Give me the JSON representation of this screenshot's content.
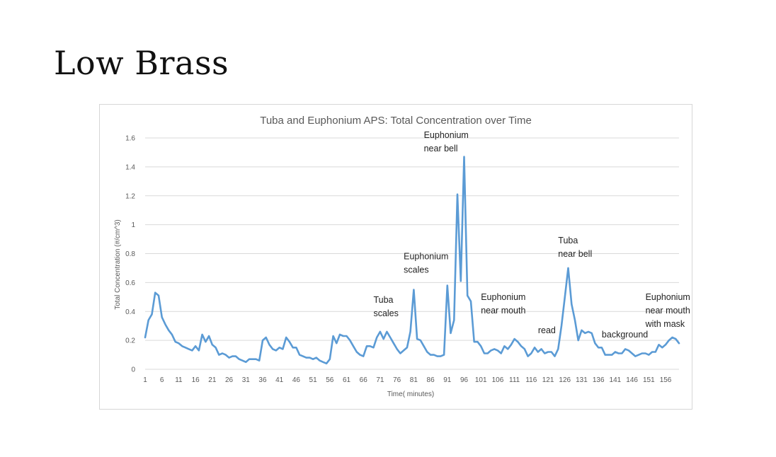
{
  "slide": {
    "title": "Low Brass"
  },
  "chart_data": {
    "type": "line",
    "title": "Tuba and Euphonium APS: Total Concentration over Time",
    "xlabel": "Time( minutes)",
    "ylabel": "Total Concentration (#/cm^3)",
    "ylim": [
      0,
      1.6
    ],
    "yticks": [
      "0",
      "0.2",
      "0.4",
      "0.6",
      "0.8",
      "1",
      "1.2",
      "1.4",
      "1.6"
    ],
    "xlim": [
      1,
      160
    ],
    "xticks": [
      1,
      6,
      11,
      16,
      21,
      26,
      31,
      36,
      41,
      46,
      51,
      56,
      61,
      66,
      71,
      76,
      81,
      86,
      91,
      96,
      101,
      106,
      111,
      116,
      121,
      126,
      131,
      136,
      141,
      146,
      151,
      156
    ],
    "grid": true,
    "legend": "none",
    "series": [
      {
        "color": "#5b9bd5",
        "x": [
          1,
          2,
          3,
          4,
          5,
          6,
          7,
          8,
          9,
          10,
          11,
          12,
          13,
          14,
          15,
          16,
          17,
          18,
          19,
          20,
          21,
          22,
          23,
          24,
          25,
          26,
          27,
          28,
          29,
          30,
          31,
          32,
          33,
          34,
          35,
          36,
          37,
          38,
          39,
          40,
          41,
          42,
          43,
          44,
          45,
          46,
          47,
          48,
          49,
          50,
          51,
          52,
          53,
          54,
          55,
          56,
          57,
          58,
          59,
          60,
          61,
          62,
          63,
          64,
          65,
          66,
          67,
          68,
          69,
          70,
          71,
          72,
          73,
          74,
          75,
          76,
          77,
          78,
          79,
          80,
          81,
          82,
          83,
          84,
          85,
          86,
          87,
          88,
          89,
          90,
          91,
          92,
          93,
          94,
          95,
          96,
          97,
          98,
          99,
          100,
          101,
          102,
          103,
          104,
          105,
          106,
          107,
          108,
          109,
          110,
          111,
          112,
          113,
          114,
          115,
          116,
          117,
          118,
          119,
          120,
          121,
          122,
          123,
          124,
          125,
          126,
          127,
          128,
          129,
          130,
          131,
          132,
          133,
          134,
          135,
          136,
          137,
          138,
          139,
          140,
          141,
          142,
          143,
          144,
          145,
          146,
          147,
          148,
          149,
          150,
          151,
          152,
          153,
          154,
          155,
          156,
          157,
          158,
          159,
          160
        ],
        "y": [
          0.22,
          0.34,
          0.38,
          0.53,
          0.51,
          0.36,
          0.31,
          0.27,
          0.24,
          0.19,
          0.18,
          0.16,
          0.15,
          0.14,
          0.13,
          0.16,
          0.13,
          0.24,
          0.19,
          0.23,
          0.17,
          0.15,
          0.1,
          0.11,
          0.1,
          0.08,
          0.09,
          0.09,
          0.07,
          0.06,
          0.05,
          0.07,
          0.07,
          0.07,
          0.06,
          0.2,
          0.22,
          0.17,
          0.14,
          0.13,
          0.15,
          0.14,
          0.22,
          0.19,
          0.15,
          0.15,
          0.1,
          0.09,
          0.08,
          0.08,
          0.07,
          0.08,
          0.06,
          0.05,
          0.04,
          0.07,
          0.23,
          0.18,
          0.24,
          0.23,
          0.23,
          0.2,
          0.16,
          0.12,
          0.1,
          0.09,
          0.16,
          0.16,
          0.15,
          0.22,
          0.26,
          0.21,
          0.26,
          0.22,
          0.18,
          0.14,
          0.11,
          0.13,
          0.15,
          0.26,
          0.55,
          0.21,
          0.2,
          0.16,
          0.12,
          0.1,
          0.1,
          0.09,
          0.09,
          0.1,
          0.58,
          0.25,
          0.34,
          1.21,
          0.61,
          1.47,
          0.51,
          0.47,
          0.19,
          0.19,
          0.16,
          0.11,
          0.11,
          0.13,
          0.14,
          0.13,
          0.11,
          0.16,
          0.14,
          0.17,
          0.21,
          0.19,
          0.16,
          0.14,
          0.09,
          0.11,
          0.15,
          0.12,
          0.14,
          0.11,
          0.12,
          0.12,
          0.09,
          0.14,
          0.3,
          0.5,
          0.7,
          0.45,
          0.34,
          0.2,
          0.27,
          0.25,
          0.26,
          0.25,
          0.18,
          0.15,
          0.15,
          0.1,
          0.1,
          0.1,
          0.12,
          0.11,
          0.11,
          0.14,
          0.13,
          0.11,
          0.09,
          0.1,
          0.11,
          0.11,
          0.1,
          0.12,
          0.12,
          0.17,
          0.15,
          0.17,
          0.2,
          0.22,
          0.21,
          0.18
        ]
      }
    ],
    "annotations": [
      {
        "lines": [
          "Tuba",
          "scales"
        ],
        "x": 69,
        "y": 0.46
      },
      {
        "lines": [
          "Euphonium",
          "scales"
        ],
        "x": 78,
        "y": 0.76
      },
      {
        "lines": [
          "Euphonium",
          "near bell"
        ],
        "x": 84,
        "y": 1.6
      },
      {
        "lines": [
          "Euphonium",
          "near mouth"
        ],
        "x": 101,
        "y": 0.48
      },
      {
        "lines": [
          "read"
        ],
        "x": 118,
        "y": 0.25
      },
      {
        "lines": [
          "Tuba",
          "near bell"
        ],
        "x": 124,
        "y": 0.87
      },
      {
        "lines": [
          "background"
        ],
        "x": 137,
        "y": 0.22
      },
      {
        "lines": [
          "Euphonium",
          "near mouth",
          "with mask"
        ],
        "x": 150,
        "y": 0.48
      }
    ]
  }
}
